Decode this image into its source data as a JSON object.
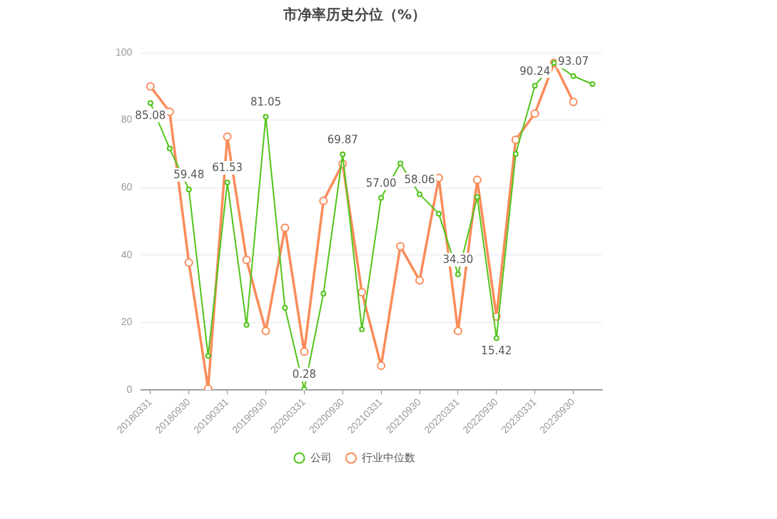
{
  "chart_data": {
    "type": "line",
    "title": "市净率历史分位（%）",
    "categories": [
      "20180331",
      null,
      "20180930",
      null,
      "20190331",
      null,
      "20190930",
      null,
      "20200331",
      null,
      "20200930",
      null,
      "20210331",
      null,
      "20210930",
      null,
      "20220331",
      null,
      "20220930",
      null,
      "20230331",
      null,
      "20230930",
      null
    ],
    "series": [
      {
        "name": "公司",
        "color": "#52c41a",
        "values": [
          85.08,
          71.6,
          59.48,
          10.1,
          61.53,
          19.3,
          81.05,
          24.4,
          0.28,
          28.6,
          69.87,
          18.0,
          57.0,
          67.2,
          58.06,
          52.3,
          34.3,
          57.2,
          15.42,
          70.0,
          90.24,
          97.0,
          93.07,
          90.7
        ],
        "value_labels": [
          "85.08",
          null,
          "59.48",
          null,
          "61.53",
          null,
          "81.05",
          null,
          "0.28",
          null,
          "69.87",
          null,
          "57.00",
          null,
          "58.06",
          null,
          "34.30",
          null,
          "15.42",
          null,
          "90.24",
          null,
          "93.07",
          null
        ]
      },
      {
        "name": "行业中位数",
        "color": "#fa8c5a",
        "values": [
          90.0,
          82.5,
          37.8,
          0.4,
          75.1,
          38.6,
          17.5,
          48.1,
          11.4,
          56.1,
          67.1,
          29.0,
          7.2,
          42.6,
          32.5,
          62.9,
          17.5,
          62.3,
          21.8,
          74.2,
          82.0,
          97.0,
          85.4,
          null
        ]
      }
    ],
    "ylim": [
      0,
      100
    ],
    "yticks": [
      0,
      20,
      40,
      60,
      80,
      100
    ],
    "grid": "y",
    "legend": "bottom",
    "marker": "circle",
    "line_style": "solid"
  }
}
